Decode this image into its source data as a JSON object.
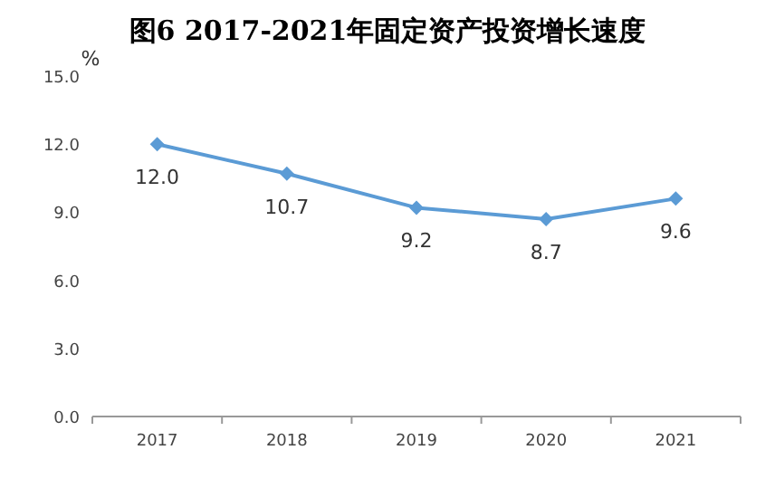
{
  "chart_data": {
    "type": "line",
    "title": "图6 2017-2021年固定资产投资增长速度",
    "ylabel": "%",
    "categories": [
      "2017",
      "2018",
      "2019",
      "2020",
      "2021"
    ],
    "series": [
      {
        "color": "#5b9bd5",
        "values": [
          12.0,
          10.7,
          9.2,
          8.7,
          9.6
        ],
        "value_labels": [
          "12.0",
          "10.7",
          "9.2",
          "8.7",
          "9.6"
        ]
      }
    ],
    "ylim": [
      0,
      15
    ],
    "yticks": [
      {
        "value": 0,
        "label": "0.0"
      },
      {
        "value": 3,
        "label": "3.0"
      },
      {
        "value": 6,
        "label": "6.0"
      },
      {
        "value": 9,
        "label": "9.0"
      },
      {
        "value": 12,
        "label": "12.0"
      },
      {
        "value": 15,
        "label": "15.0"
      }
    ],
    "marker": "diamond",
    "line_style": "solid",
    "grid": false
  }
}
